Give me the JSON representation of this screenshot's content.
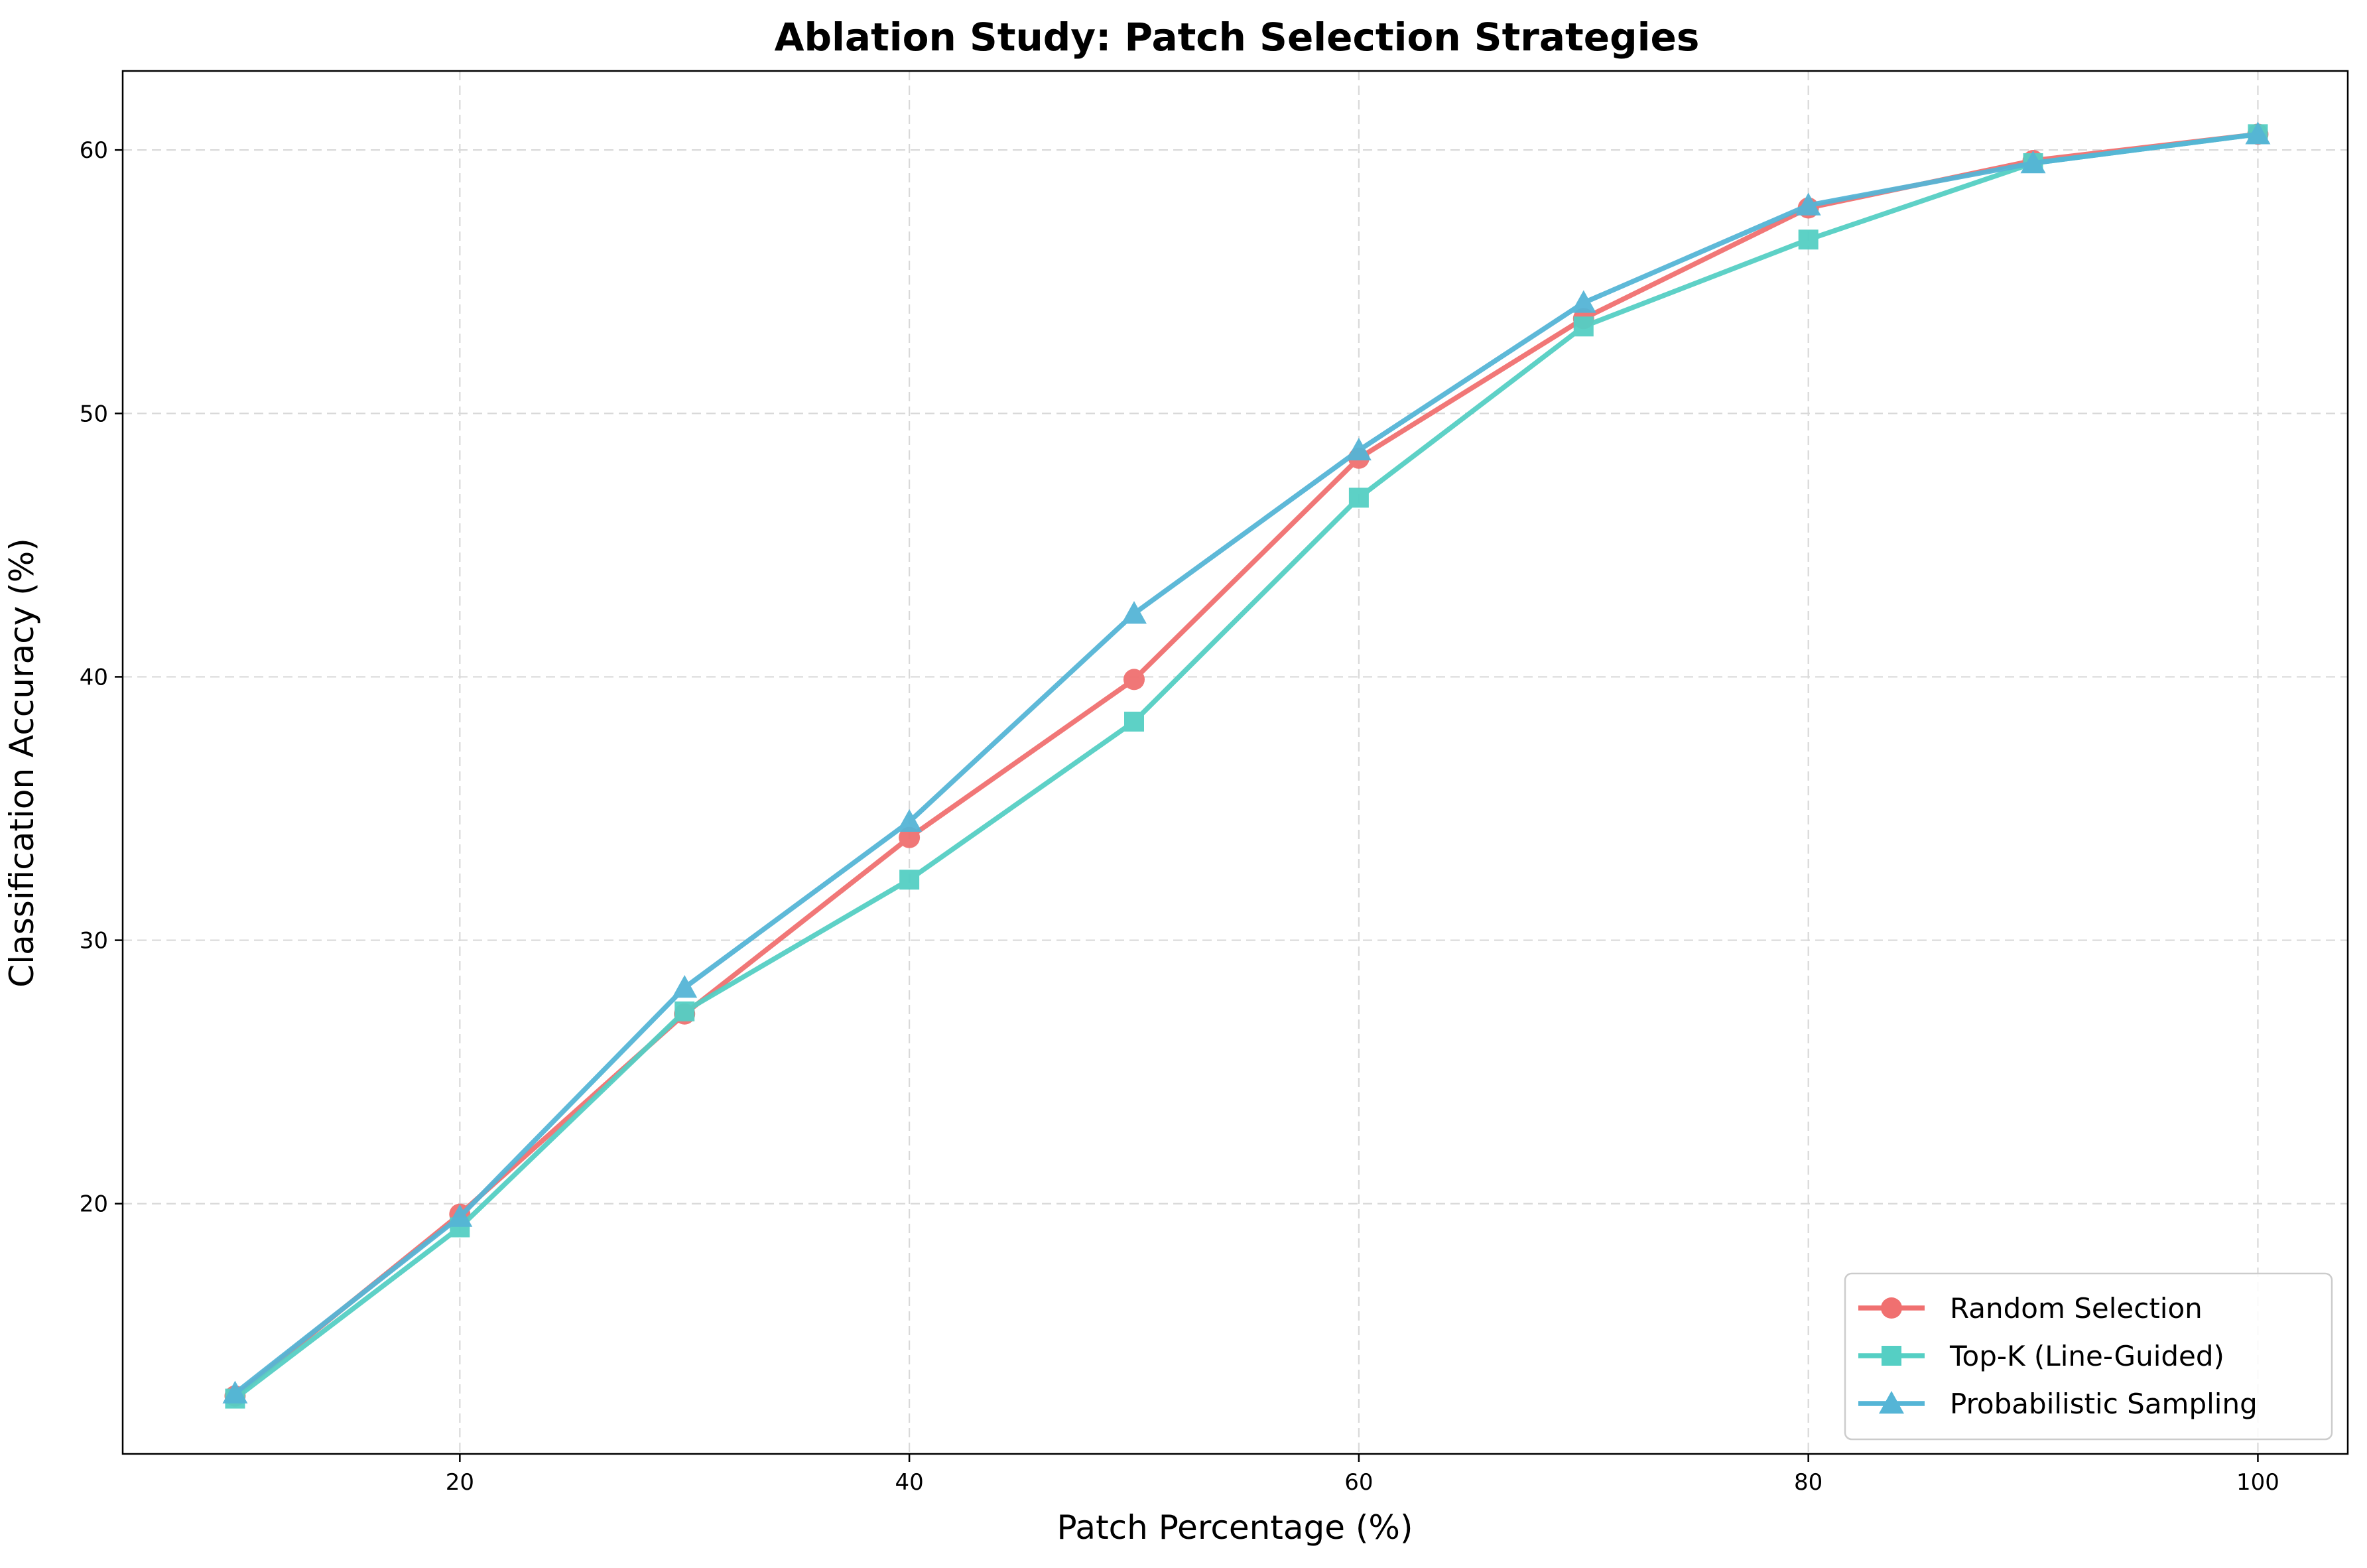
{
  "chart_data": {
    "type": "line",
    "title": "Ablation Study: Patch Selection Strategies",
    "xlabel": "Patch Percentage (%)",
    "ylabel": "Classification Accuracy (%)",
    "xlim": [
      5,
      104
    ],
    "ylim": [
      10.5,
      63
    ],
    "xticks": [
      20,
      40,
      60,
      80,
      100
    ],
    "yticks": [
      20,
      30,
      40,
      50,
      60
    ],
    "grid": true,
    "legend_position": "lower-right",
    "x": [
      10,
      20,
      30,
      40,
      50,
      60,
      70,
      80,
      90,
      100
    ],
    "series": [
      {
        "name": "Random Selection",
        "color": "#f07070",
        "marker": "circle",
        "values": [
          12.7,
          19.6,
          27.2,
          33.9,
          39.9,
          48.3,
          53.6,
          57.8,
          59.6,
          60.6
        ]
      },
      {
        "name": "Top-K (Line-Guided)",
        "color": "#55cfc4",
        "marker": "square",
        "values": [
          12.6,
          19.1,
          27.3,
          32.3,
          38.3,
          46.8,
          53.3,
          56.6,
          59.5,
          60.6
        ]
      },
      {
        "name": "Probabilistic Sampling",
        "color": "#55b5d6",
        "marker": "triangle",
        "values": [
          12.8,
          19.5,
          28.2,
          34.5,
          42.4,
          48.6,
          54.2,
          57.9,
          59.5,
          60.6
        ]
      }
    ]
  }
}
